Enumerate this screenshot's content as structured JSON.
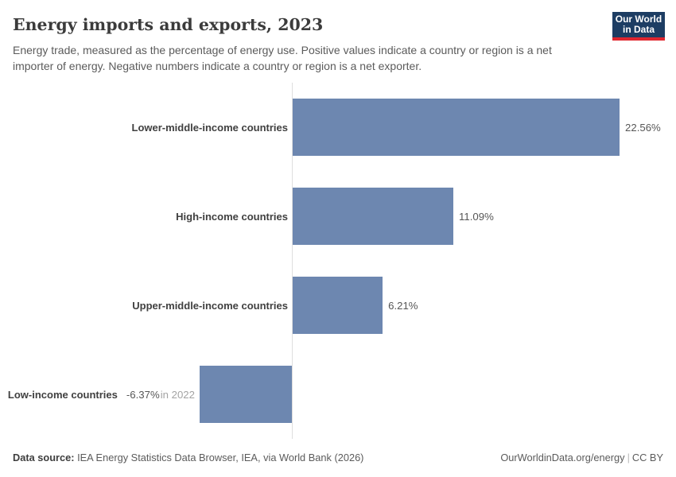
{
  "header": {
    "title": "Energy imports and exports, 2023",
    "subtitle": "Energy trade, measured as the percentage of energy use. Positive values indicate a country or region is a net importer of energy. Negative numbers indicate a country or region is a net exporter.",
    "logo": {
      "line1": "Our World",
      "line2": "in Data"
    }
  },
  "chart_data": {
    "type": "bar",
    "orientation": "horizontal",
    "categories": [
      "Lower-middle-income countries",
      "High-income countries",
      "Upper-middle-income countries",
      "Low-income countries"
    ],
    "values": [
      22.56,
      11.09,
      6.21,
      -6.37
    ],
    "value_labels": [
      "22.56%",
      "11.09%",
      "6.21%",
      "-6.37%"
    ],
    "notes": [
      "",
      "",
      "",
      "in 2022"
    ],
    "bar_color": "#6d87b0",
    "axis_color": "#dedede",
    "xlim": [
      -8,
      26
    ],
    "grid": false,
    "legend": false
  },
  "footer": {
    "source_label": "Data source:",
    "source_text": " IEA Energy Statistics Data Browser, IEA, via World Bank (2026)",
    "link_text": "OurWorldinData.org/energy",
    "separator": "|",
    "license": "CC BY"
  }
}
